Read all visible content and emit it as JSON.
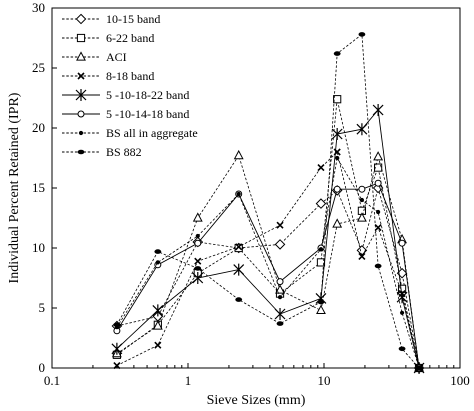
{
  "chart_data": {
    "type": "line",
    "title": "",
    "xlabel": "Sieve Sizes (mm)",
    "ylabel": "Individual Percent Retained (IPR)",
    "xscale": "log",
    "xlim": [
      0.1,
      100
    ],
    "ylim": [
      0,
      30
    ],
    "xticks": [
      0.1,
      1,
      10,
      100
    ],
    "xtick_labels": [
      "0.1",
      "1",
      "10",
      "100"
    ],
    "yticks": [
      0,
      5,
      10,
      15,
      20,
      25,
      30
    ],
    "ytick_labels": [
      "0",
      "5",
      "10",
      "15",
      "20",
      "25",
      "30"
    ],
    "grid": false,
    "legend_position": "top-left",
    "series": [
      {
        "name": "10-15 band",
        "marker": "diamond-open",
        "line": "dashed",
        "x": [
          0.3,
          0.6,
          1.18,
          2.36,
          4.75,
          9.5,
          12.5,
          19,
          25,
          37.5,
          50
        ],
        "y": [
          3.5,
          4.3,
          10.5,
          10.0,
          10.3,
          13.7,
          14.8,
          9.8,
          15.0,
          7.9,
          0
        ]
      },
      {
        "name": "6-22 band",
        "marker": "square-open",
        "line": "dashed",
        "x": [
          0.3,
          0.6,
          1.18,
          2.36,
          4.75,
          9.5,
          12.5,
          19,
          25,
          37.5,
          50
        ],
        "y": [
          1.1,
          3.6,
          7.9,
          10.0,
          6.2,
          8.8,
          22.4,
          13.1,
          16.7,
          6.6,
          0
        ]
      },
      {
        "name": "ACI",
        "marker": "triangle-open",
        "line": "dashed",
        "x": [
          0.3,
          0.6,
          1.18,
          2.36,
          4.75,
          9.5,
          12.5,
          19,
          25,
          37.5,
          50
        ],
        "y": [
          1.2,
          3.5,
          12.5,
          17.7,
          6.5,
          4.8,
          12.0,
          12.5,
          17.6,
          10.7,
          0
        ]
      },
      {
        "name": "8-18 band",
        "marker": "x",
        "line": "dashed",
        "x": [
          0.3,
          0.6,
          1.18,
          2.36,
          4.75,
          9.5,
          12.5,
          19,
          25,
          37.5,
          50
        ],
        "y": [
          0.2,
          1.9,
          8.9,
          10.1,
          11.9,
          16.7,
          18.0,
          9.3,
          11.7,
          6.2,
          0
        ]
      },
      {
        "name": "5 -10-18-22 band",
        "marker": "star",
        "line": "solid",
        "x": [
          0.3,
          0.6,
          1.18,
          2.36,
          4.75,
          9.5,
          12.5,
          19,
          25,
          37.5,
          50
        ],
        "y": [
          1.6,
          4.8,
          7.5,
          8.2,
          4.5,
          5.8,
          19.5,
          19.9,
          21.5,
          5.9,
          0
        ]
      },
      {
        "name": "5 -10-14-18 band",
        "marker": "circle-open",
        "line": "solid",
        "x": [
          0.3,
          0.6,
          1.18,
          2.36,
          4.75,
          9.5,
          12.5,
          19,
          25,
          37.5,
          50
        ],
        "y": [
          3.1,
          8.6,
          10.4,
          14.5,
          7.2,
          10.0,
          14.9,
          14.9,
          15.4,
          10.4,
          0
        ]
      },
      {
        "name": "BS all in aggregate",
        "marker": "dot",
        "line": "dashed",
        "x": [
          0.3,
          0.6,
          1.18,
          2.36,
          4.75,
          9.5,
          12.5,
          19,
          25,
          37.5,
          50
        ],
        "y": [
          3.4,
          8.8,
          11.0,
          14.5,
          5.9,
          9.9,
          17.5,
          14.0,
          13.0,
          4.6,
          0
        ]
      },
      {
        "name": "BS 882",
        "marker": "ellipse-filled",
        "line": "dashed",
        "x": [
          0.3,
          0.6,
          1.18,
          2.36,
          4.75,
          9.5,
          12.5,
          19,
          25,
          37.5,
          50
        ],
        "y": [
          3.6,
          9.7,
          8.3,
          5.7,
          3.7,
          5.5,
          26.2,
          27.8,
          8.5,
          1.6,
          0
        ]
      }
    ]
  }
}
